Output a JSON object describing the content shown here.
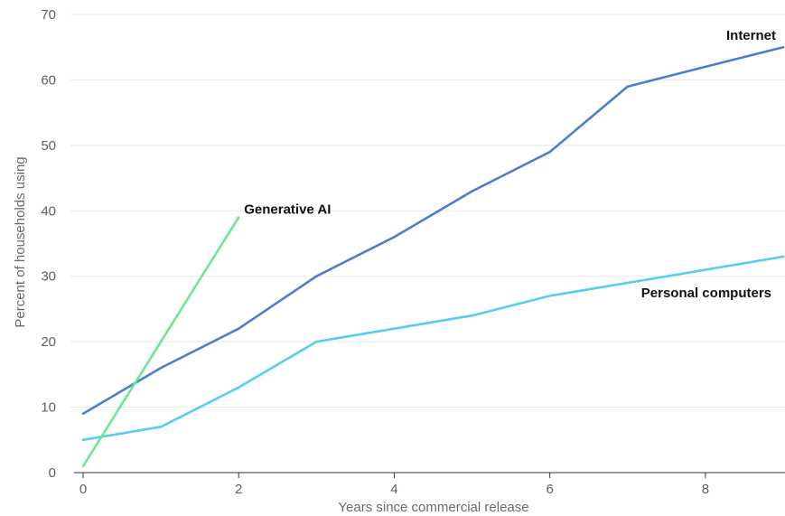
{
  "chart_data": {
    "type": "line",
    "title": "",
    "xlabel": "Years since commercial release",
    "ylabel": "Percent of households using",
    "xlim": [
      0,
      9
    ],
    "ylim": [
      0,
      70
    ],
    "x_ticks": [
      0,
      2,
      4,
      6,
      8
    ],
    "y_ticks": [
      0,
      10,
      20,
      30,
      40,
      50,
      60,
      70
    ],
    "grid": "horizontal",
    "legend": "none",
    "series": [
      {
        "name": "Internet",
        "color": "#4a7fd0",
        "x": [
          0,
          1,
          2,
          3,
          4,
          5,
          6,
          7,
          8,
          9
        ],
        "values": [
          9,
          16,
          22,
          30,
          36,
          43,
          49,
          59,
          62,
          65
        ]
      },
      {
        "name": "Personal computers",
        "color": "#56cdf0",
        "x": [
          0,
          1,
          2,
          3,
          4,
          5,
          6,
          7,
          8,
          9
        ],
        "values": [
          5,
          7,
          13,
          20,
          22,
          24,
          27,
          29,
          31,
          33
        ]
      },
      {
        "name": "Generative AI",
        "color": "#6ee68f",
        "x": [
          0,
          1,
          2
        ],
        "values": [
          1,
          20,
          39
        ]
      }
    ]
  }
}
